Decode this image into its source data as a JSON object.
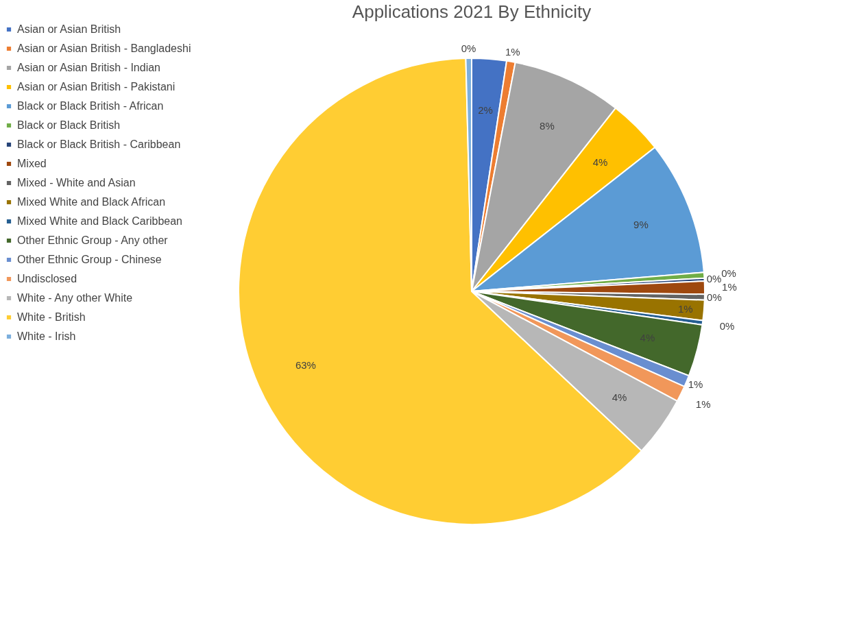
{
  "chart_data": {
    "type": "pie",
    "title": "Applications 2021 By Ethnicity",
    "categories": [
      "Asian or Asian British",
      "Asian or Asian British - Bangladeshi",
      "Asian or Asian British - Indian",
      "Asian or Asian British - Pakistani",
      "Black or Black British - African",
      "Black or Black British",
      "Black or Black British - Caribbean",
      "Mixed",
      "Mixed - White and Asian",
      "Mixed White and Black African",
      "Mixed White and Black Caribbean",
      "Other Ethnic Group - Any other",
      "Other Ethnic Group - Chinese",
      "Undisclosed",
      "White - Any other White",
      "White - British",
      "White - Irish"
    ],
    "values": [
      2.4,
      0.6,
      7.6,
      3.8,
      9.3,
      0.4,
      0.2,
      0.9,
      0.4,
      1.4,
      0.3,
      3.6,
      0.8,
      1.1,
      4.2,
      62.6,
      0.4
    ],
    "value_labels": [
      "2%",
      "1%",
      "8%",
      "4%",
      "9%",
      "0%",
      "0%",
      "1%",
      "0%",
      "1%",
      "0%",
      "4%",
      "1%",
      "1%",
      "4%",
      "63%",
      "0%"
    ],
    "colors": [
      "#4472c4",
      "#ed7d31",
      "#a5a5a5",
      "#ffc000",
      "#5b9bd5",
      "#70ad47",
      "#264478",
      "#9e480e",
      "#636363",
      "#997300",
      "#255e91",
      "#43682b",
      "#698ed0",
      "#f1975a",
      "#b7b7b7",
      "#ffcd33",
      "#7cafdd"
    ],
    "legend": "left"
  }
}
